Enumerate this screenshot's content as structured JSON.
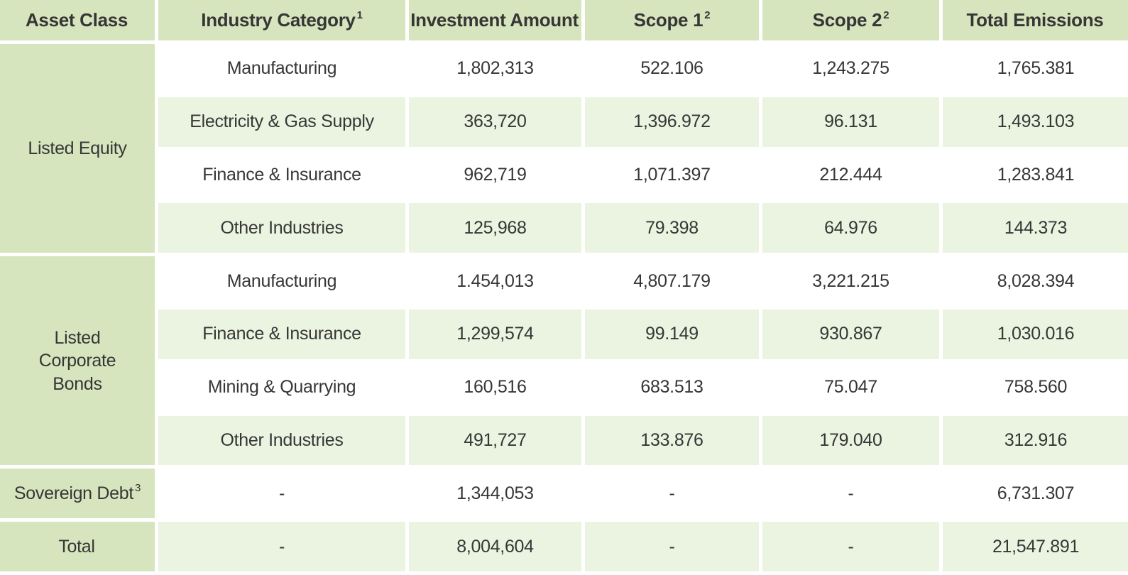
{
  "colors": {
    "header_green": "#d6e5bd",
    "stripe_green": "#ebf4e1",
    "gap_white": "#ffffff",
    "text": "#363636"
  },
  "table": {
    "header": [
      {
        "label": "Asset Class",
        "sup": ""
      },
      {
        "label": "Industry Category",
        "sup": "1"
      },
      {
        "label": "Investment Amount",
        "sup": ""
      },
      {
        "label": "Scope 1",
        "sup": "2"
      },
      {
        "label": "Scope 2",
        "sup": "2"
      },
      {
        "label": "Total Emissions",
        "sup": ""
      }
    ],
    "sections": [
      {
        "asset_class": "Listed Equity",
        "rows": [
          {
            "industry": "Manufacturing",
            "investment": "1,802,313",
            "scope1": "522.106",
            "scope2": "1,243.275",
            "total": "1,765.381"
          },
          {
            "industry": "Electricity & Gas Supply",
            "investment": "363,720",
            "scope1": "1,396.972",
            "scope2": "96.131",
            "total": "1,493.103"
          },
          {
            "industry": "Finance & Insurance",
            "investment": "962,719",
            "scope1": "1,071.397",
            "scope2": "212.444",
            "total": "1,283.841"
          },
          {
            "industry": "Other Industries",
            "investment": "125,968",
            "scope1": "79.398",
            "scope2": "64.976",
            "total": "144.373"
          }
        ]
      },
      {
        "asset_class": "Listed Corporate Bonds",
        "rows": [
          {
            "industry": "Manufacturing",
            "investment": "1.454,013",
            "scope1": "4,807.179",
            "scope2": "3,221.215",
            "total": "8,028.394"
          },
          {
            "industry": "Finance & Insurance",
            "investment": "1,299,574",
            "scope1": "99.149",
            "scope2": "930.867",
            "total": "1,030.016"
          },
          {
            "industry": "Mining & Quarrying",
            "investment": "160,516",
            "scope1": "683.513",
            "scope2": "75.047",
            "total": "758.560"
          },
          {
            "industry": "Other Industries",
            "investment": "491,727",
            "scope1": "133.876",
            "scope2": "179.040",
            "total": "312.916"
          }
        ]
      }
    ],
    "footer_rows": [
      {
        "asset_class": "Sovereign Debt",
        "sup": "3",
        "industry": "-",
        "investment": "1,344,053",
        "scope1": "-",
        "scope2": "-",
        "total": "6,731.307"
      },
      {
        "asset_class": "Total",
        "sup": "",
        "industry": "-",
        "investment": "8,004,604",
        "scope1": "-",
        "scope2": "-",
        "total": "21,547.891"
      }
    ]
  },
  "chart_data": {
    "type": "table",
    "title": "Financed emissions by asset class and industry",
    "columns": [
      "Asset Class",
      "Industry Category 1",
      "Investment Amount",
      "Scope 1 2",
      "Scope 2 2",
      "Total Emissions"
    ],
    "rows": [
      [
        "Listed Equity",
        "Manufacturing",
        "1,802,313",
        "522.106",
        "1,243.275",
        "1,765.381"
      ],
      [
        "Listed Equity",
        "Electricity & Gas Supply",
        "363,720",
        "1,396.972",
        "96.131",
        "1,493.103"
      ],
      [
        "Listed Equity",
        "Finance & Insurance",
        "962,719",
        "1,071.397",
        "212.444",
        "1,283.841"
      ],
      [
        "Listed Equity",
        "Other Industries",
        "125,968",
        "79.398",
        "64.976",
        "144.373"
      ],
      [
        "Listed Corporate Bonds",
        "Manufacturing",
        "1.454,013",
        "4,807.179",
        "3,221.215",
        "8,028.394"
      ],
      [
        "Listed Corporate Bonds",
        "Finance & Insurance",
        "1,299,574",
        "99.149",
        "930.867",
        "1,030.016"
      ],
      [
        "Listed Corporate Bonds",
        "Mining & Quarrying",
        "160,516",
        "683.513",
        "75.047",
        "758.560"
      ],
      [
        "Listed Corporate Bonds",
        "Other Industries",
        "491,727",
        "133.876",
        "179.040",
        "312.916"
      ],
      [
        "Sovereign Debt 3",
        "-",
        "1,344,053",
        "-",
        "-",
        "6,731.307"
      ],
      [
        "Total",
        "-",
        "8,004,604",
        "-",
        "-",
        "21,547.891"
      ]
    ]
  }
}
